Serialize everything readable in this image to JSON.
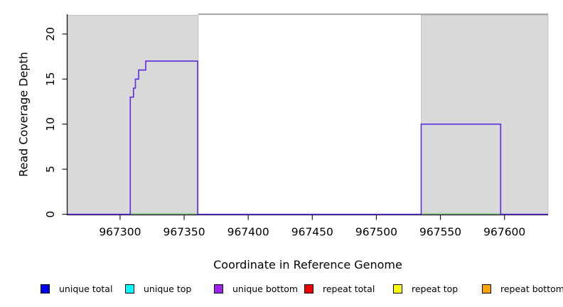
{
  "axes": {
    "x_label": "Coordinate in Reference Genome",
    "y_label": "Read Coverage Depth",
    "x_ticks": [
      967300,
      967350,
      967400,
      967450,
      967500,
      967550,
      967600
    ],
    "y_ticks": [
      0,
      5,
      10,
      15,
      20
    ]
  },
  "chart_data": {
    "type": "line",
    "title": "",
    "xlabel": "Coordinate in Reference Genome",
    "ylabel": "Read Coverage Depth",
    "xlim": [
      967259,
      967634
    ],
    "ylim": [
      0,
      22.2
    ],
    "grid": false,
    "legend_position": "bottom",
    "series": [
      {
        "name": "unique bottom coverage",
        "color": "#5b2be0",
        "points": [
          [
            967259,
            0
          ],
          [
            967308,
            0
          ],
          [
            967308,
            13
          ],
          [
            967310.5,
            13
          ],
          [
            967310.5,
            14
          ],
          [
            967312,
            14
          ],
          [
            967312,
            15
          ],
          [
            967314.5,
            15
          ],
          [
            967314.5,
            16
          ],
          [
            967320,
            16
          ],
          [
            967320,
            17
          ],
          [
            967360.5,
            17
          ],
          [
            967360.5,
            0
          ],
          [
            967535,
            0
          ],
          [
            967535,
            10
          ],
          [
            967597,
            10
          ],
          [
            967597,
            0
          ],
          [
            967634,
            0
          ]
        ]
      },
      {
        "name": "zero-depth baseline (covered regions)",
        "color": "#8fd98f",
        "value": 0,
        "segments": [
          [
            967308,
            967361
          ],
          [
            967535,
            967597
          ]
        ]
      }
    ],
    "shaded_regions": [
      {
        "name": "left shaded region",
        "x0": 967259,
        "x1": 967361,
        "fill": "#d9d9d9",
        "stroke": "#c3c3c3"
      },
      {
        "name": "right shaded region",
        "x0": 967535,
        "x1": 967634,
        "fill": "#d9d9d9",
        "stroke": "#c3c3c3"
      }
    ],
    "top_line": {
      "x0": 967361,
      "x1": 967634,
      "y": 22.2,
      "color": "#8c8c8c"
    }
  },
  "legend": {
    "items": [
      {
        "label": "unique total",
        "color": "#0000f0"
      },
      {
        "label": "unique top",
        "color": "#00ffff"
      },
      {
        "label": "unique bottom",
        "color": "#a020f0"
      },
      {
        "label": "repeat total",
        "color": "#ee0000"
      },
      {
        "label": "repeat top",
        "color": "#ffff00"
      },
      {
        "label": "repeat bottom",
        "color": "#ffa500"
      }
    ]
  },
  "colors": {
    "axis": "#1a1a1a",
    "tick_text": "#000000",
    "background": "#ffffff"
  }
}
